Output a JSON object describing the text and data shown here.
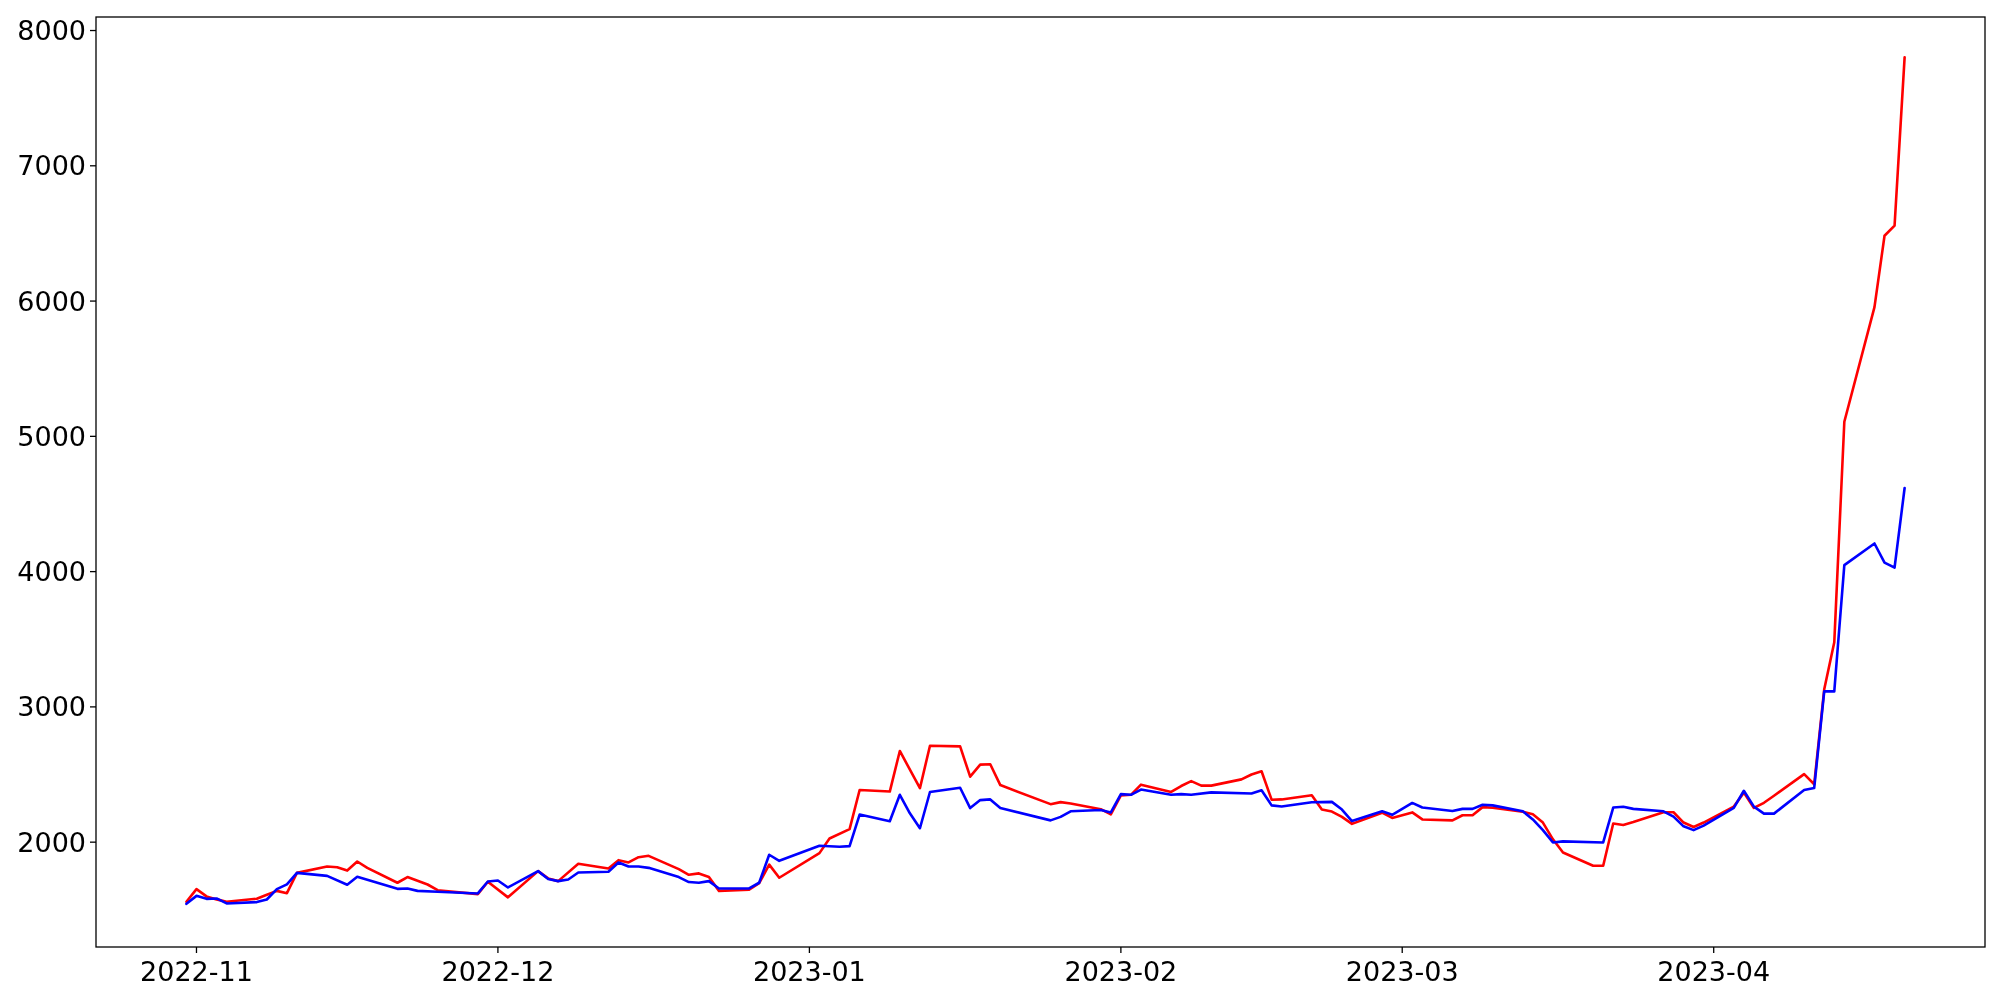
{
  "chart_data": {
    "type": "line",
    "xlim": [
      "2022-10-22",
      "2023-04-28"
    ],
    "ylim": [
      1225,
      8100
    ],
    "xticks": [
      {
        "value": "2022-11",
        "label": "2022-11"
      },
      {
        "value": "2022-12",
        "label": "2022-12"
      },
      {
        "value": "2023-01",
        "label": "2023-01"
      },
      {
        "value": "2023-02",
        "label": "2023-02"
      },
      {
        "value": "2023-03",
        "label": "2023-03"
      },
      {
        "value": "2023-04",
        "label": "2023-04"
      }
    ],
    "yticks": [
      2000,
      3000,
      4000,
      5000,
      6000,
      7000,
      8000
    ],
    "grid": false,
    "marker": "none",
    "line_style": "solid",
    "series": [
      {
        "color": "#ff0000",
        "x": [
          "2022-10-31",
          "2022-11-01",
          "2022-11-02",
          "2022-11-03",
          "2022-11-04",
          "2022-11-07",
          "2022-11-08",
          "2022-11-09",
          "2022-11-10",
          "2022-11-11",
          "2022-11-14",
          "2022-11-15",
          "2022-11-16",
          "2022-11-17",
          "2022-11-18",
          "2022-11-21",
          "2022-11-22",
          "2022-11-23",
          "2022-11-24",
          "2022-11-25",
          "2022-11-29",
          "2022-11-30",
          "2022-12-02",
          "2022-12-05",
          "2022-12-06",
          "2022-12-07",
          "2022-12-09",
          "2022-12-12",
          "2022-12-13",
          "2022-12-14",
          "2022-12-15",
          "2022-12-16",
          "2022-12-19",
          "2022-12-20",
          "2022-12-21",
          "2022-12-22",
          "2022-12-23",
          "2022-12-26",
          "2022-12-27",
          "2022-12-28",
          "2022-12-29",
          "2023-01-02",
          "2023-01-03",
          "2023-01-05",
          "2023-01-06",
          "2023-01-09",
          "2023-01-10",
          "2023-01-12",
          "2023-01-13",
          "2023-01-16",
          "2023-01-17",
          "2023-01-18",
          "2023-01-19",
          "2023-01-20",
          "2023-01-25",
          "2023-01-26",
          "2023-01-27",
          "2023-01-30",
          "2023-01-31",
          "2023-02-01",
          "2023-02-02",
          "2023-02-03",
          "2023-02-06",
          "2023-02-07",
          "2023-02-08",
          "2023-02-09",
          "2023-02-10",
          "2023-02-13",
          "2023-02-14",
          "2023-02-15",
          "2023-02-16",
          "2023-02-17",
          "2023-02-20",
          "2023-02-21",
          "2023-02-22",
          "2023-02-23",
          "2023-02-24",
          "2023-02-27",
          "2023-02-28",
          "2023-03-02",
          "2023-03-03",
          "2023-03-06",
          "2023-03-07",
          "2023-03-08",
          "2023-03-09",
          "2023-03-10",
          "2023-03-13",
          "2023-03-14",
          "2023-03-15",
          "2023-03-16",
          "2023-03-17",
          "2023-03-20",
          "2023-03-21",
          "2023-03-22",
          "2023-03-23",
          "2023-03-24",
          "2023-03-27",
          "2023-03-28",
          "2023-03-29",
          "2023-03-30",
          "2023-03-31",
          "2023-04-03",
          "2023-04-04",
          "2023-04-05",
          "2023-04-06",
          "2023-04-07",
          "2023-04-10",
          "2023-04-11",
          "2023-04-12",
          "2023-04-13",
          "2023-04-14",
          "2023-04-17",
          "2023-04-18",
          "2023-04-19",
          "2023-04-20"
        ],
        "values": [
          1559,
          1653,
          1599,
          1577,
          1559,
          1582,
          1611,
          1640,
          1623,
          1773,
          1820,
          1815,
          1790,
          1857,
          1810,
          1700,
          1742,
          1715,
          1687,
          1645,
          1616,
          1707,
          1592,
          1786,
          1732,
          1712,
          1840,
          1805,
          1867,
          1850,
          1889,
          1899,
          1801,
          1759,
          1769,
          1742,
          1640,
          1648,
          1697,
          1834,
          1737,
          1919,
          2027,
          2096,
          2386,
          2374,
          2674,
          2399,
          2713,
          2708,
          2484,
          2573,
          2576,
          2422,
          2281,
          2296,
          2286,
          2244,
          2205,
          2345,
          2350,
          2425,
          2371,
          2415,
          2451,
          2418,
          2418,
          2464,
          2500,
          2524,
          2314,
          2316,
          2347,
          2241,
          2226,
          2187,
          2135,
          2218,
          2179,
          2220,
          2168,
          2161,
          2199,
          2199,
          2259,
          2254,
          2225,
          2207,
          2145,
          2021,
          1924,
          1826,
          1826,
          2138,
          2127,
          2149,
          2221,
          2221,
          2145,
          2112,
          2145,
          2263,
          2366,
          2253,
          2291,
          2343,
          2503,
          2428,
          3130,
          3478,
          5108,
          5955,
          6483,
          6558,
          7802
        ]
      },
      {
        "color": "#0000ff",
        "x": [
          "2022-10-31",
          "2022-11-01",
          "2022-11-02",
          "2022-11-03",
          "2022-11-04",
          "2022-11-07",
          "2022-11-08",
          "2022-11-09",
          "2022-11-10",
          "2022-11-11",
          "2022-11-14",
          "2022-11-16",
          "2022-11-17",
          "2022-11-21",
          "2022-11-22",
          "2022-11-23",
          "2022-11-25",
          "2022-11-29",
          "2022-11-30",
          "2022-12-01",
          "2022-12-02",
          "2022-12-05",
          "2022-12-06",
          "2022-12-07",
          "2022-12-08",
          "2022-12-09",
          "2022-12-12",
          "2022-12-13",
          "2022-12-14",
          "2022-12-15",
          "2022-12-16",
          "2022-12-19",
          "2022-12-20",
          "2022-12-21",
          "2022-12-22",
          "2022-12-23",
          "2022-12-26",
          "2022-12-27",
          "2022-12-28",
          "2022-12-29",
          "2023-01-02",
          "2023-01-04",
          "2023-01-05",
          "2023-01-06",
          "2023-01-09",
          "2023-01-10",
          "2023-01-11",
          "2023-01-12",
          "2023-01-13",
          "2023-01-16",
          "2023-01-17",
          "2023-01-18",
          "2023-01-19",
          "2023-01-20",
          "2023-01-25",
          "2023-01-26",
          "2023-01-27",
          "2023-01-30",
          "2023-01-31",
          "2023-02-01",
          "2023-02-02",
          "2023-02-03",
          "2023-02-06",
          "2023-02-07",
          "2023-02-08",
          "2023-02-10",
          "2023-02-14",
          "2023-02-15",
          "2023-02-16",
          "2023-02-17",
          "2023-02-20",
          "2023-02-22",
          "2023-02-23",
          "2023-02-24",
          "2023-02-27",
          "2023-02-28",
          "2023-03-02",
          "2023-03-03",
          "2023-03-06",
          "2023-03-07",
          "2023-03-08",
          "2023-03-09",
          "2023-03-10",
          "2023-03-13",
          "2023-03-14",
          "2023-03-15",
          "2023-03-16",
          "2023-03-17",
          "2023-03-21",
          "2023-03-22",
          "2023-03-23",
          "2023-03-24",
          "2023-03-27",
          "2023-03-28",
          "2023-03-29",
          "2023-03-30",
          "2023-03-31",
          "2023-04-03",
          "2023-04-04",
          "2023-04-05",
          "2023-04-06",
          "2023-04-07",
          "2023-04-10",
          "2023-04-11",
          "2023-04-12",
          "2023-04-13",
          "2023-04-14",
          "2023-04-17",
          "2023-04-18",
          "2023-04-19",
          "2023-04-20"
        ],
        "values": [
          1544,
          1603,
          1581,
          1584,
          1547,
          1557,
          1576,
          1653,
          1688,
          1773,
          1751,
          1685,
          1744,
          1655,
          1658,
          1640,
          1633,
          1621,
          1709,
          1717,
          1665,
          1786,
          1727,
          1712,
          1724,
          1776,
          1781,
          1850,
          1820,
          1820,
          1810,
          1742,
          1705,
          1700,
          1712,
          1658,
          1658,
          1700,
          1907,
          1862,
          1973,
          1966,
          1971,
          2204,
          2155,
          2350,
          2213,
          2103,
          2371,
          2402,
          2252,
          2311,
          2316,
          2252,
          2161,
          2187,
          2228,
          2238,
          2220,
          2355,
          2350,
          2389,
          2350,
          2355,
          2350,
          2368,
          2360,
          2384,
          2272,
          2264,
          2295,
          2298,
          2241,
          2156,
          2228,
          2202,
          2290,
          2256,
          2230,
          2246,
          2246,
          2277,
          2272,
          2228,
          2168,
          2089,
          1998,
          2006,
          1998,
          2256,
          2262,
          2246,
          2228,
          2189,
          2117,
          2089,
          2122,
          2253,
          2380,
          2263,
          2211,
          2211,
          2385,
          2400,
          3115,
          3115,
          4048,
          4208,
          4067,
          4029,
          4618
        ]
      }
    ]
  }
}
